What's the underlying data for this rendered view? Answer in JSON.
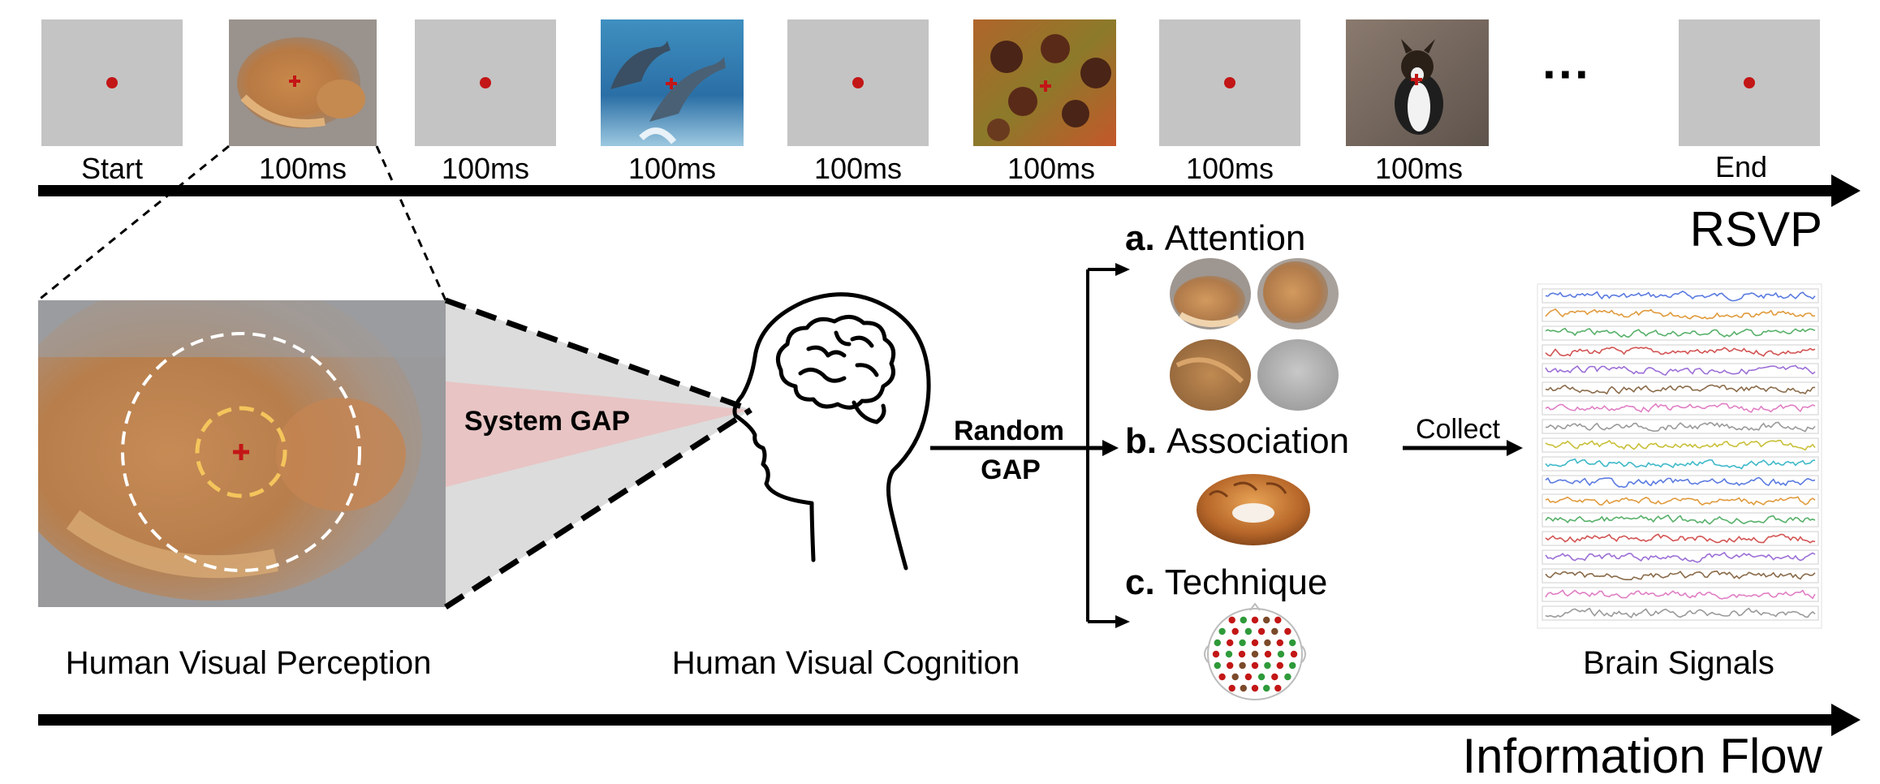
{
  "rsvp": {
    "frames": [
      {
        "content": "blank",
        "label": "Start"
      },
      {
        "content": "cat-photo",
        "label": "100ms"
      },
      {
        "content": "blank",
        "label": "100ms"
      },
      {
        "content": "dolphins-photo",
        "label": "100ms"
      },
      {
        "content": "blank",
        "label": "100ms"
      },
      {
        "content": "chestnuts-photo",
        "label": "100ms"
      },
      {
        "content": "blank",
        "label": "100ms"
      },
      {
        "content": "dog-photo",
        "label": "100ms"
      },
      {
        "content": "blank",
        "label": "End"
      }
    ],
    "ellipsis": "···",
    "title": "RSVP"
  },
  "perception": {
    "label": "Human Visual Perception",
    "gap_label": "System GAP"
  },
  "cognition": {
    "label": "Human Visual Cognition",
    "gap_label_line1": "Random",
    "gap_label_line2": "GAP"
  },
  "branches": {
    "attention": {
      "letter": "a.",
      "label": "Attention"
    },
    "association": {
      "letter": "b.",
      "label": "Association"
    },
    "technique": {
      "letter": "c.",
      "label": "Technique"
    }
  },
  "brain_signals": {
    "collect_label": "Collect",
    "label": "Brain Signals",
    "channel_colors": [
      "#5b7be0",
      "#e09b3d",
      "#58b06a",
      "#d35454",
      "#9c6fd6",
      "#8a6b4a",
      "#e07fc4",
      "#9a9a9a",
      "#c9c03a",
      "#3fb9c9",
      "#5b7be0",
      "#e09b3d",
      "#58b06a",
      "#d35454",
      "#9c6fd6",
      "#8a6b4a",
      "#e07fc4",
      "#9a9a9a"
    ]
  },
  "flow": {
    "title": "Information Flow"
  },
  "colors": {
    "frame_gray": "#c4c4c4",
    "fixation_red": "#c31616",
    "gap_pink": "#e8c4c4",
    "gap_gray": "#dcdcdc"
  }
}
